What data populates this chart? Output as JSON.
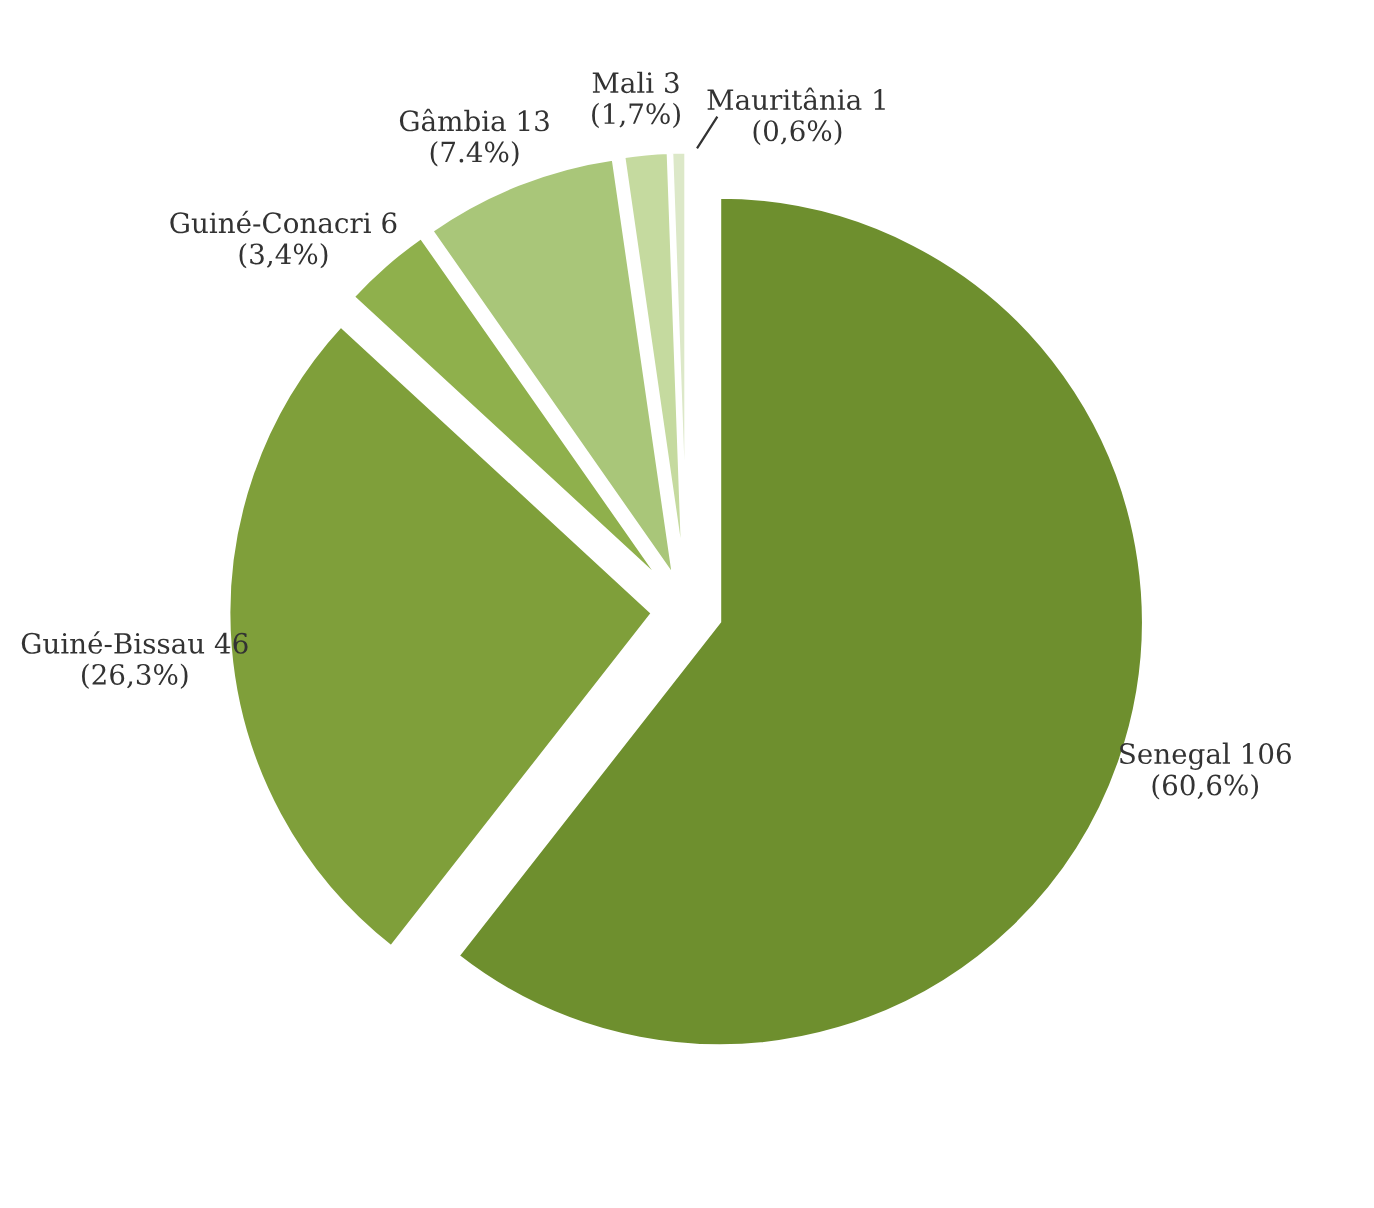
{
  "chart_data": {
    "type": "pie",
    "categories": [
      "Senegal",
      "Guiné-Bissau",
      "Guiné-Conacri",
      "Gâmbia",
      "Mali",
      "Mauritânia"
    ],
    "values": [
      106,
      46,
      6,
      13,
      3,
      1
    ],
    "value_labels": [
      "106 (60,6%)",
      "46 (26,3%)",
      "6 (3,4%)",
      "13 (7.4%)",
      "3 (1,7%)",
      "1 (0,6%)"
    ],
    "colors": [
      "#6e8f2e",
      "#7f9f3a",
      "#8fb04c",
      "#a9c679",
      "#c5da9f",
      "#dce8c8"
    ],
    "legend": false
  }
}
